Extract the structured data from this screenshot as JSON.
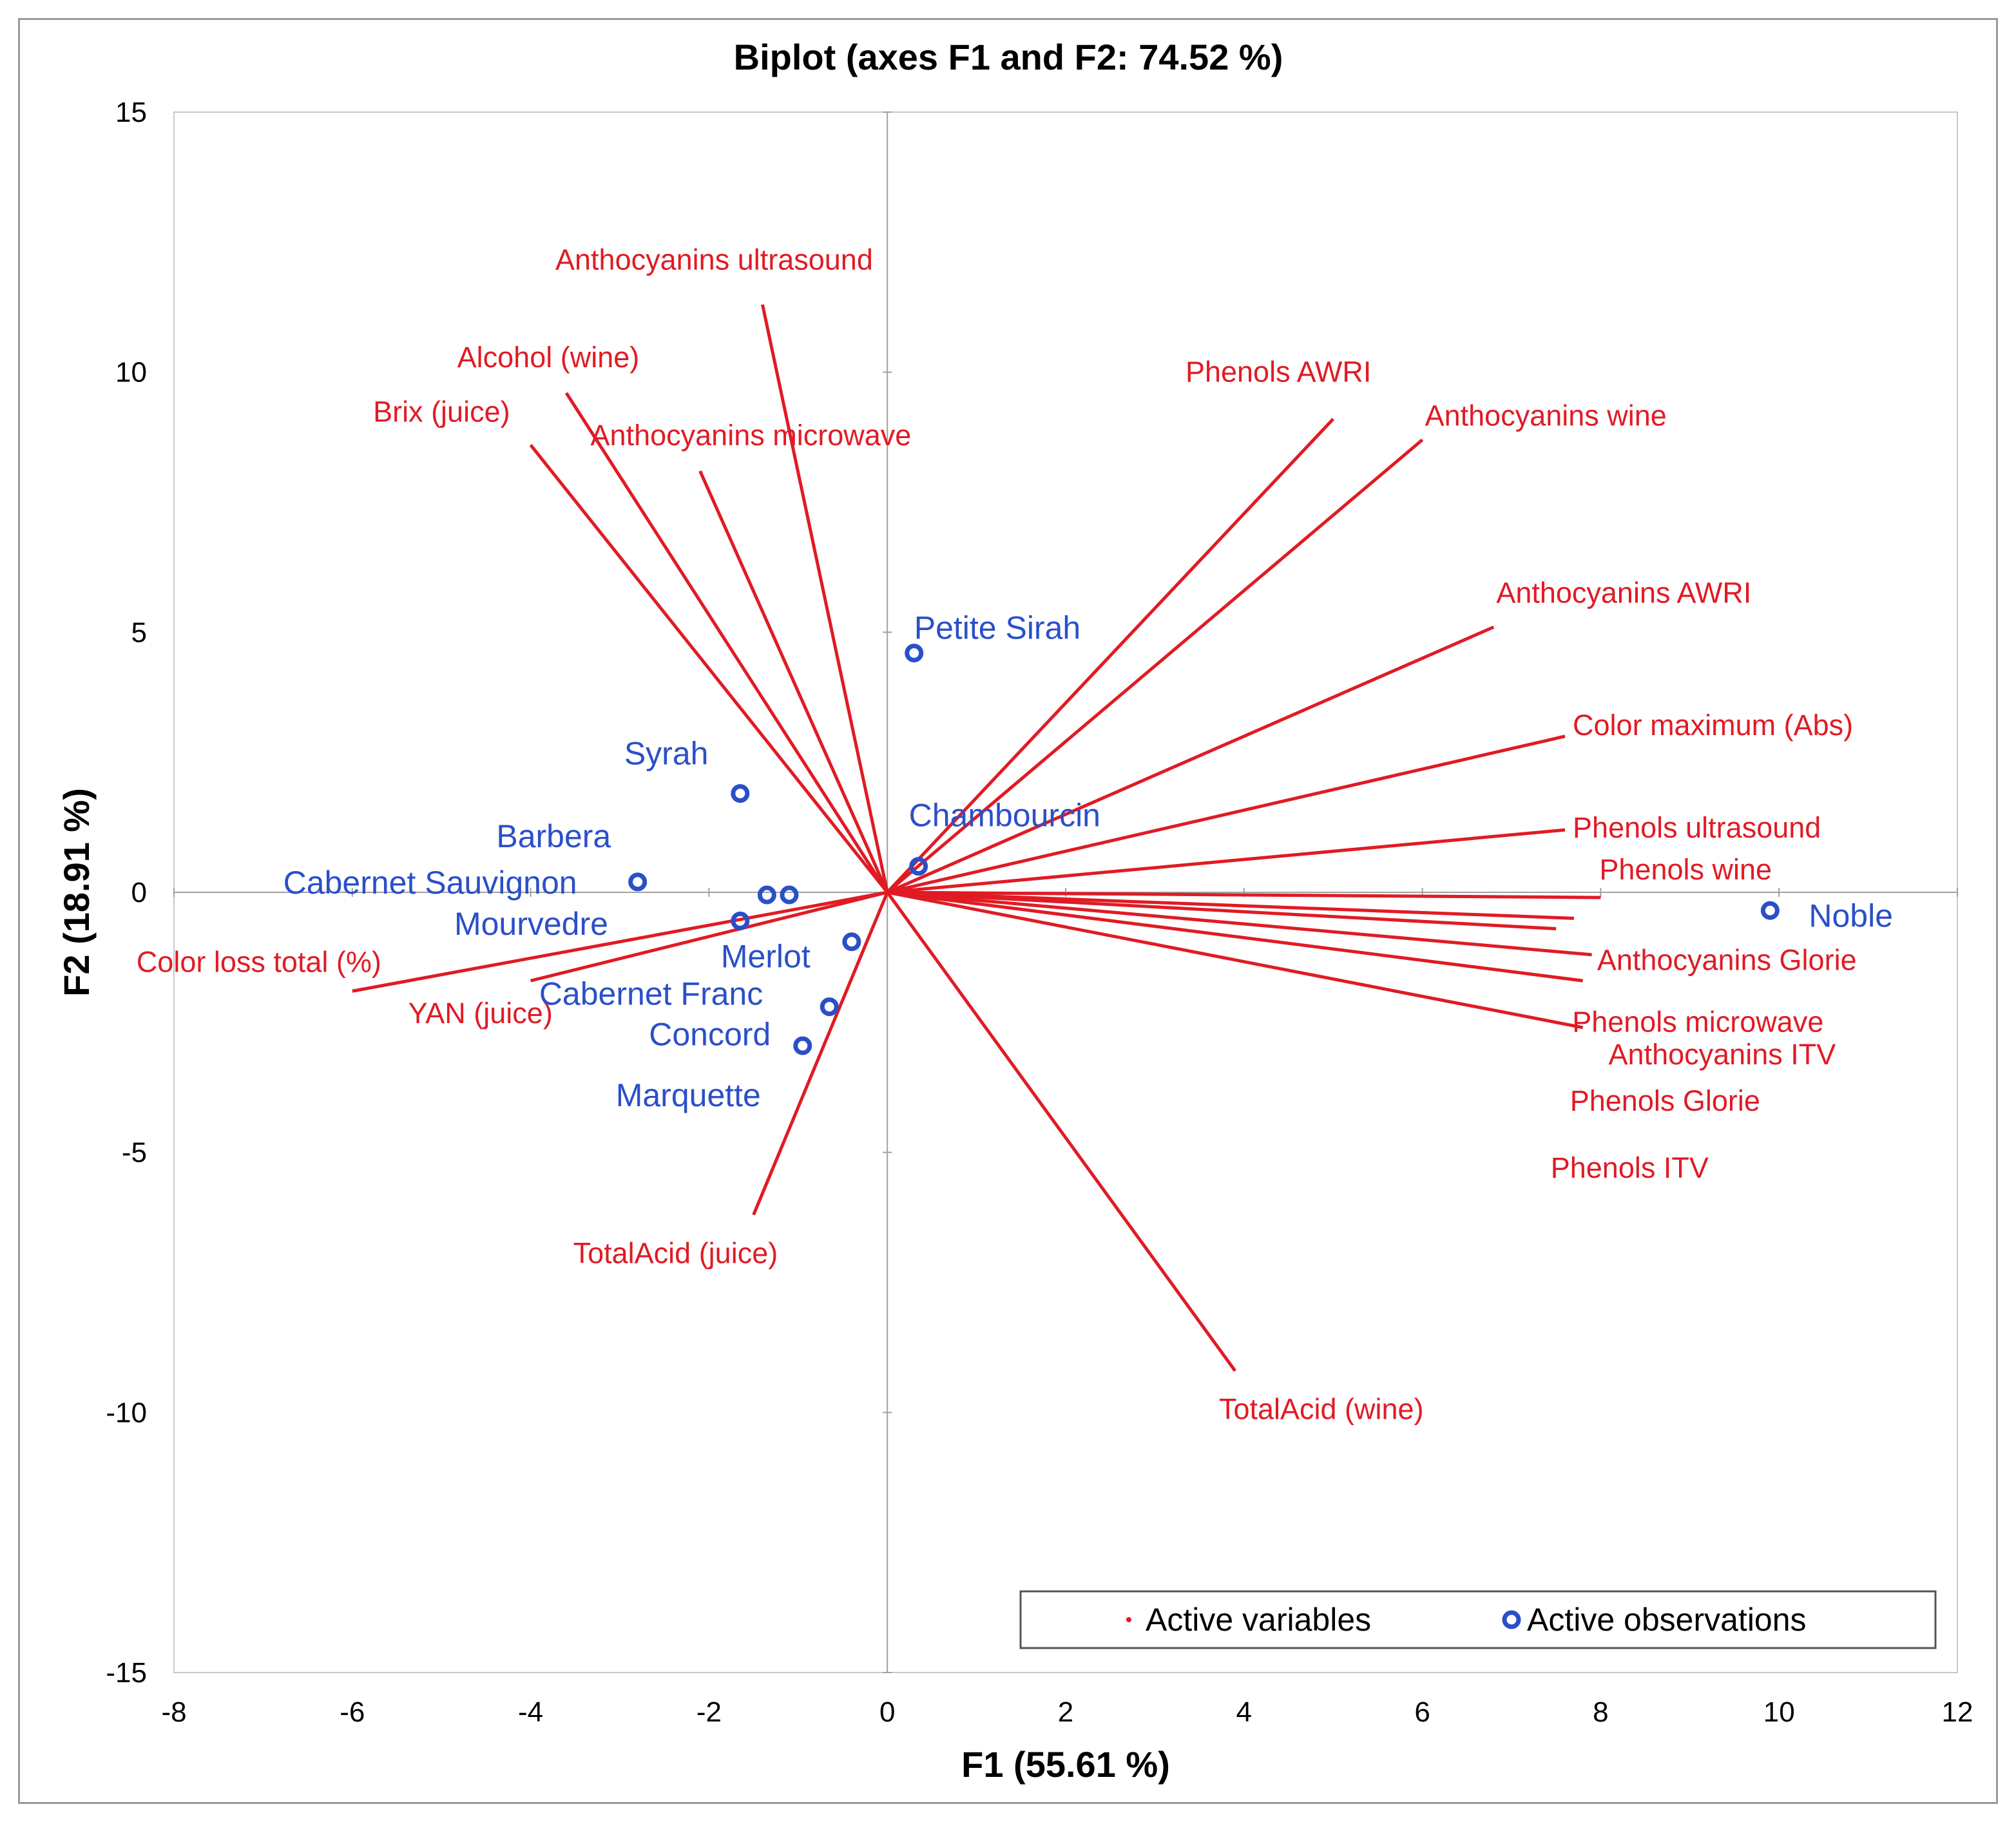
{
  "colors": {
    "variables": "#e01b24",
    "observations": "#2a4fc9",
    "axis": "#a0a0a0",
    "plot_border": "#c8c8c8"
  },
  "chart_data": {
    "type": "scatter",
    "subtype": "biplot",
    "title": "Biplot (axes F1 and F2: 74.52 %)",
    "xlabel": "F1 (55.61 %)",
    "ylabel": "F2 (18.91 %)",
    "xlim": [
      -8,
      12
    ],
    "ylim": [
      -15,
      15
    ],
    "xticks": [
      -8,
      -6,
      -4,
      -2,
      0,
      2,
      4,
      6,
      8,
      10,
      12
    ],
    "yticks": [
      -15,
      -10,
      -5,
      0,
      5,
      10,
      15
    ],
    "grid": false,
    "legend": {
      "position": "bottom-right",
      "entries": [
        "Active variables",
        "Active observations"
      ]
    },
    "variables": [
      {
        "name": "Anthocyanins ultrasound",
        "x": -1.4,
        "y": 11.3
      },
      {
        "name": "Alcohol (wine)",
        "x": -3.6,
        "y": 9.6
      },
      {
        "name": "Brix (juice)",
        "x": -4.0,
        "y": 8.6
      },
      {
        "name": "Anthocyanins microwave",
        "x": -2.1,
        "y": 8.1
      },
      {
        "name": "Phenols AWRI",
        "x": 5.0,
        "y": 9.1
      },
      {
        "name": "Anthocyanins wine",
        "x": 6.0,
        "y": 8.7
      },
      {
        "name": "Anthocyanins AWRI",
        "x": 6.8,
        "y": 5.1
      },
      {
        "name": "Color maximum (Abs)",
        "x": 7.6,
        "y": 3.0
      },
      {
        "name": "Phenols ultrasound",
        "x": 7.6,
        "y": 1.2
      },
      {
        "name": "Phenols wine",
        "x": 8.0,
        "y": -0.1
      },
      {
        "name": "Anthocyanins Glorie",
        "x": 7.7,
        "y": -0.5
      },
      {
        "name": "Phenols microwave",
        "x": 7.5,
        "y": -0.7
      },
      {
        "name": "Anthocyanins ITV",
        "x": 7.9,
        "y": -1.2
      },
      {
        "name": "Phenols Glorie",
        "x": 7.8,
        "y": -1.7
      },
      {
        "name": "Phenols ITV",
        "x": 7.8,
        "y": -2.6
      },
      {
        "name": "Color loss total (%)",
        "x": -6.0,
        "y": -1.9
      },
      {
        "name": "YAN (juice)",
        "x": -4.0,
        "y": -1.7
      },
      {
        "name": "TotalAcid (juice)",
        "x": -1.5,
        "y": -6.2
      },
      {
        "name": "TotalAcid (wine)",
        "x": 3.9,
        "y": -9.2
      }
    ],
    "observations": [
      {
        "name": "Petite Sirah",
        "x": 0.3,
        "y": 4.6
      },
      {
        "name": "Chambourcin",
        "x": 0.35,
        "y": 0.5
      },
      {
        "name": "Syrah",
        "x": -1.65,
        "y": 1.9
      },
      {
        "name": "Barbera",
        "x": -1.35,
        "y": -0.05
      },
      {
        "name": "Cabernet Sauvignon",
        "x": -2.8,
        "y": 0.2
      },
      {
        "name": "Mourvedre",
        "x": -1.1,
        "y": -0.05
      },
      {
        "name": "Merlot",
        "x": -1.65,
        "y": -0.55
      },
      {
        "name": "Cabernet Franc",
        "x": -0.4,
        "y": -0.95
      },
      {
        "name": "Concord",
        "x": -0.65,
        "y": -2.2
      },
      {
        "name": "Marquette",
        "x": -0.95,
        "y": -2.95
      },
      {
        "name": "Noble",
        "x": 9.9,
        "y": -0.35
      }
    ]
  }
}
